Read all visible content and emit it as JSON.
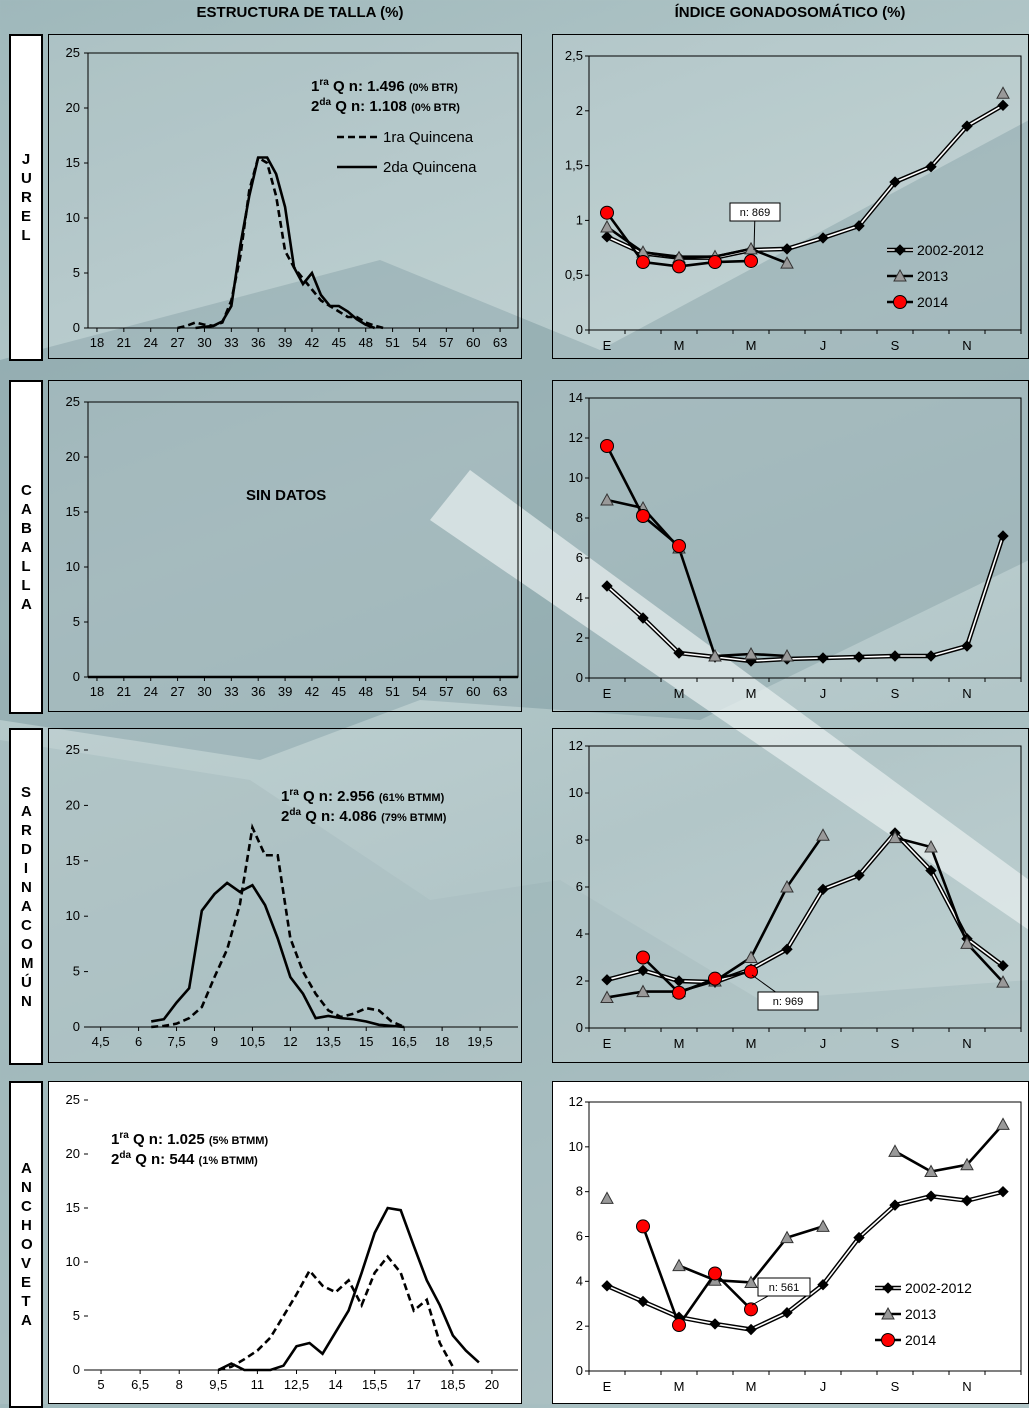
{
  "titles": {
    "left": "ESTRUCTURA DE TALLA (%)",
    "right": "ÍNDICE GONADOSOMÁTICO (%)"
  },
  "species": [
    {
      "label": "JUREL"
    },
    {
      "label": "CABALLA"
    },
    {
      "label": "SARDINA COMÚN"
    },
    {
      "label": "ANCHOVETA"
    }
  ],
  "notes": {
    "jurel_q1_prefix": "ra",
    "jurel_q1_main": "Q n: 1.496",
    "jurel_q1_pct": "(0% BTR)",
    "jurel_q2_prefix": "da",
    "jurel_q2_main": "Q n: 1.108",
    "jurel_q2_pct": "(0% BTR)",
    "sin_datos": "SIN DATOS",
    "sardina_q1_prefix": "ra",
    "sardina_q1_main": "Q n:  2.956",
    "sardina_q1_pct": "(61% BTMM)",
    "sardina_q2_prefix": "da",
    "sardina_q2_main": "Q n: 4.086",
    "sardina_q2_pct": "(79% BTMM)",
    "anch_q1_prefix": "ra",
    "anch_q1_main": "Q n:  1.025",
    "anch_q1_pct": "(5% BTMM)",
    "anch_q2_prefix": "da",
    "anch_q2_main": "Q n:    544",
    "anch_q2_pct": "(1% BTMM)",
    "callout_jurel": "n: 869",
    "callout_sardina": "n: 969",
    "callout_anch": "n: 561"
  },
  "chart_data": [
    {
      "id": "jurel_talla",
      "type": "line",
      "x_ticks": [
        "18",
        "21",
        "24",
        "27",
        "30",
        "33",
        "36",
        "39",
        "42",
        "45",
        "48",
        "51",
        "54",
        "57",
        "60",
        "63"
      ],
      "xlim": [
        17,
        65
      ],
      "ylim": [
        0,
        25
      ],
      "y_ticks": [
        0,
        5,
        10,
        15,
        20,
        25
      ],
      "legend": [
        "1ra Quincena",
        "2da Quincena"
      ],
      "series": [
        {
          "name": "1ra Quincena",
          "style": "dashed",
          "x": [
            27,
            28,
            29,
            30,
            31,
            32,
            33,
            34,
            35,
            36,
            37,
            38,
            39,
            40,
            41,
            42,
            43,
            44,
            45,
            46,
            47,
            48,
            49,
            50
          ],
          "y": [
            0,
            0.2,
            0.5,
            0.3,
            0.2,
            0.5,
            2.5,
            6.5,
            12.5,
            15.5,
            15,
            12,
            7,
            5.5,
            4.5,
            3.5,
            2.5,
            2,
            1.5,
            1,
            1,
            0.5,
            0.2,
            0
          ]
        },
        {
          "name": "2da Quincena",
          "style": "solid",
          "x": [
            29,
            30,
            31,
            32,
            33,
            34,
            35,
            36,
            37,
            38,
            39,
            40,
            41,
            42,
            43,
            44,
            45,
            46,
            47,
            48,
            49
          ],
          "y": [
            0,
            0.1,
            0.2,
            0.6,
            2,
            7.5,
            12,
            15.5,
            15.5,
            14,
            11,
            5.5,
            4,
            5,
            3,
            2,
            2,
            1.5,
            0.8,
            0.3,
            0
          ]
        }
      ]
    },
    {
      "id": "jurel_igs",
      "type": "line",
      "months": [
        "E",
        "",
        "M",
        "",
        "M",
        "",
        "J",
        "",
        "S",
        "",
        "N",
        ""
      ],
      "ylim": [
        0,
        2.5
      ],
      "y_ticks": [
        "0",
        "0,5",
        "1",
        "1,5",
        "2",
        "2,5"
      ],
      "legend": [
        "2002-2012",
        "2013",
        "2014"
      ],
      "series": [
        {
          "name": "2002-2012",
          "values": [
            0.85,
            0.7,
            0.66,
            0.66,
            0.73,
            0.74,
            0.84,
            0.95,
            1.35,
            1.49,
            1.86,
            2.05
          ]
        },
        {
          "name": "2013",
          "values": [
            0.94,
            0.71,
            0.66,
            0.67,
            0.74,
            0.61,
            null,
            null,
            null,
            null,
            null,
            2.16
          ]
        },
        {
          "name": "2014",
          "values": [
            1.07,
            0.62,
            0.58,
            0.62,
            0.63,
            null,
            null,
            null,
            null,
            null,
            null,
            null
          ]
        }
      ]
    },
    {
      "id": "caballa_talla",
      "type": "line",
      "x_ticks": [
        "18",
        "21",
        "24",
        "27",
        "30",
        "33",
        "36",
        "39",
        "42",
        "45",
        "48",
        "51",
        "54",
        "57",
        "60",
        "63"
      ],
      "xlim": [
        17,
        65
      ],
      "ylim": [
        0,
        25
      ],
      "y_ticks": [
        0,
        5,
        10,
        15,
        20,
        25
      ],
      "series": [
        {
          "name": "",
          "style": "solid",
          "x": [
            17,
            65
          ],
          "y": [
            0,
            0
          ]
        }
      ]
    },
    {
      "id": "caballa_igs",
      "type": "line",
      "months": [
        "E",
        "",
        "M",
        "",
        "M",
        "",
        "J",
        "",
        "S",
        "",
        "N",
        ""
      ],
      "ylim": [
        0,
        14
      ],
      "y_ticks": [
        "0",
        "2",
        "4",
        "6",
        "8",
        "10",
        "12",
        "14"
      ],
      "series": [
        {
          "name": "2002-2012",
          "values": [
            4.6,
            3,
            1.25,
            1.05,
            0.85,
            0.95,
            1,
            1.05,
            1.1,
            1.1,
            1.6,
            7.1
          ]
        },
        {
          "name": "2013",
          "values": [
            8.9,
            8.5,
            6.5,
            1.1,
            1.2,
            1.1,
            null,
            null,
            null,
            null,
            null,
            null
          ]
        },
        {
          "name": "2014",
          "values": [
            11.6,
            8.1,
            6.6,
            null,
            null,
            null,
            null,
            null,
            null,
            null,
            null,
            null
          ]
        }
      ]
    },
    {
      "id": "sardina_talla",
      "type": "line",
      "x_ticks": [
        "4,5",
        "6",
        "7,5",
        "9",
        "10,5",
        "12",
        "13,5",
        "15",
        "16,5",
        "18",
        "19,5"
      ],
      "xlim": [
        4,
        21
      ],
      "ylim": [
        0,
        25
      ],
      "y_ticks": [
        0,
        5,
        10,
        15,
        20,
        25
      ],
      "series": [
        {
          "name": "1ra Quincena",
          "style": "dashed",
          "x": [
            6.5,
            7,
            7.5,
            8,
            8.5,
            9,
            9.5,
            10,
            10.5,
            11,
            11.5,
            12,
            12.5,
            13,
            13.5,
            14,
            14.5,
            15,
            15.5,
            16,
            16.5
          ],
          "y": [
            0,
            0.1,
            0.3,
            0.8,
            1.8,
            4.5,
            7,
            11,
            18,
            15.5,
            15.5,
            8,
            5,
            3,
            1.5,
            0.9,
            1.2,
            1.7,
            1.5,
            0.5,
            0
          ]
        },
        {
          "name": "2da Quincena",
          "style": "solid",
          "x": [
            6.5,
            7,
            7.5,
            8,
            8.5,
            9,
            9.5,
            10,
            10.5,
            11,
            11.5,
            12,
            12.5,
            13,
            13.5,
            14,
            14.5,
            15,
            15.5,
            16,
            16.5
          ],
          "y": [
            0.5,
            0.7,
            2.2,
            3.5,
            10.5,
            12,
            13,
            12.2,
            12.8,
            11,
            8,
            4.5,
            3,
            0.8,
            1,
            0.8,
            0.7,
            0.5,
            0.2,
            0.1,
            0
          ]
        }
      ]
    },
    {
      "id": "sardina_igs",
      "type": "line",
      "months": [
        "E",
        "",
        "M",
        "",
        "M",
        "",
        "J",
        "",
        "S",
        "",
        "N",
        ""
      ],
      "ylim": [
        0,
        12
      ],
      "y_ticks": [
        "0",
        "2",
        "4",
        "6",
        "8",
        "10",
        "12"
      ],
      "series": [
        {
          "name": "2002-2012",
          "values": [
            2.05,
            2.45,
            2.0,
            1.95,
            2.5,
            3.35,
            5.9,
            6.5,
            8.3,
            6.7,
            3.8,
            2.65
          ]
        },
        {
          "name": "2013",
          "values": [
            1.3,
            1.55,
            1.55,
            2.0,
            3.0,
            6.0,
            8.2,
            null,
            8.1,
            7.7,
            3.6,
            1.95
          ]
        },
        {
          "name": "2014",
          "values": [
            null,
            3.0,
            1.5,
            2.1,
            2.4,
            null,
            null,
            null,
            null,
            null,
            null,
            null
          ]
        }
      ]
    },
    {
      "id": "anchoveta_talla",
      "type": "line",
      "x_ticks": [
        "5",
        "6,5",
        "8",
        "9,5",
        "11",
        "12,5",
        "14",
        "15,5",
        "17",
        "18,5",
        "20"
      ],
      "xlim": [
        4.5,
        21
      ],
      "ylim": [
        0,
        25
      ],
      "y_ticks": [
        0,
        5,
        10,
        15,
        20,
        25
      ],
      "series": [
        {
          "name": "1ra Quincena",
          "style": "dashed",
          "x": [
            9.5,
            10,
            10.5,
            11,
            11.5,
            12,
            12.5,
            13,
            13.5,
            14,
            14.5,
            15,
            15.5,
            16,
            16.5,
            17,
            17.5,
            18,
            18.5
          ],
          "y": [
            0,
            0.3,
            1,
            1.8,
            3,
            5,
            7,
            9.2,
            7.8,
            7.2,
            8.3,
            6,
            9,
            10.5,
            9,
            5.5,
            6.5,
            2.5,
            0.3
          ]
        },
        {
          "name": "2da Quincena",
          "style": "solid",
          "x": [
            9.5,
            10,
            10.5,
            11,
            11.5,
            12,
            12.5,
            13,
            13.5,
            14,
            14.5,
            15,
            15.5,
            16,
            16.5,
            17,
            17.5,
            18,
            18.5,
            19,
            19.5
          ],
          "y": [
            0,
            0.6,
            0,
            0,
            0,
            0.4,
            2.2,
            2.5,
            1.5,
            3.5,
            5.5,
            9,
            12.7,
            15,
            14.8,
            11.5,
            8.3,
            6,
            3.2,
            1.8,
            0.7
          ]
        }
      ]
    },
    {
      "id": "anchoveta_igs",
      "type": "line",
      "months": [
        "E",
        "",
        "M",
        "",
        "M",
        "",
        "J",
        "",
        "S",
        "",
        "N",
        ""
      ],
      "ylim": [
        0,
        12
      ],
      "y_ticks": [
        "0",
        "2",
        "4",
        "6",
        "8",
        "10",
        "12"
      ],
      "legend": [
        "2002-2012",
        "2013",
        "2014"
      ],
      "series": [
        {
          "name": "2002-2012",
          "values": [
            3.8,
            3.1,
            2.4,
            2.1,
            1.85,
            2.6,
            3.85,
            5.95,
            7.4,
            7.8,
            7.6,
            8.0
          ]
        },
        {
          "name": "2013",
          "values": [
            7.7,
            null,
            4.7,
            4.05,
            3.95,
            5.95,
            6.45,
            null,
            9.8,
            8.9,
            9.2,
            11.0
          ]
        },
        {
          "name": "2014",
          "values": [
            null,
            6.45,
            2.05,
            4.35,
            2.75,
            null,
            null,
            null,
            null,
            null,
            null,
            null
          ]
        }
      ]
    }
  ]
}
